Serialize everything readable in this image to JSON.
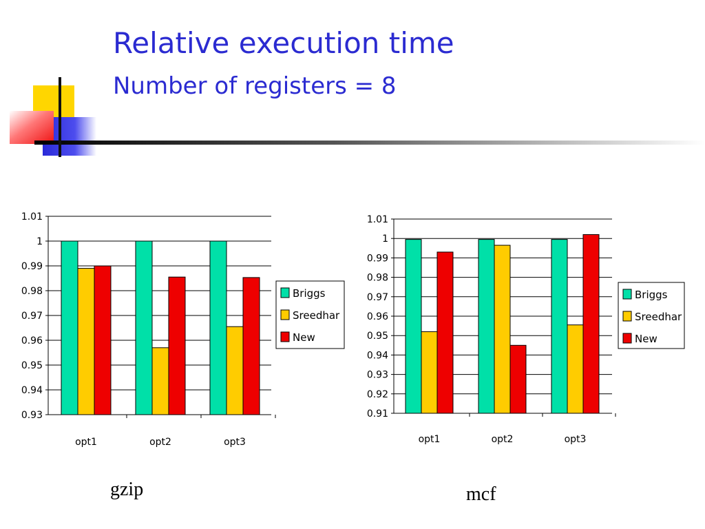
{
  "slide": {
    "title": "Relative execution time",
    "subtitle": "Number of registers = 8",
    "captions": [
      "gzip",
      "mcf"
    ]
  },
  "colors": {
    "title": "#2b2bd1",
    "briggs": "#00e0a8",
    "sreedhar": "#ffcc00",
    "new": "#ee0000"
  },
  "chart_data": [
    {
      "type": "bar",
      "title": "",
      "xlabel": "",
      "ylabel": "",
      "categories": [
        "opt1",
        "opt2",
        "opt3"
      ],
      "series": [
        {
          "name": "Briggs",
          "values": [
            1.0,
            1.0,
            1.0
          ]
        },
        {
          "name": "Sreedhar",
          "values": [
            0.989,
            0.957,
            0.9655
          ]
        },
        {
          "name": "New",
          "values": [
            0.99,
            0.9855,
            0.9853
          ]
        }
      ],
      "ylim": [
        0.93,
        1.01
      ],
      "yticks": [
        "1.01",
        "1",
        "0.99",
        "0.98",
        "0.97",
        "0.96",
        "0.95",
        "0.94",
        "0.93"
      ],
      "grid": true,
      "legend": "right"
    },
    {
      "type": "bar",
      "title": "",
      "xlabel": "",
      "ylabel": "",
      "categories": [
        "opt1",
        "opt2",
        "opt3"
      ],
      "series": [
        {
          "name": "Briggs",
          "values": [
            0.9995,
            0.9995,
            0.9995
          ]
        },
        {
          "name": "Sreedhar",
          "values": [
            0.952,
            0.9965,
            0.9555
          ]
        },
        {
          "name": "New",
          "values": [
            0.993,
            0.945,
            1.002
          ]
        }
      ],
      "ylim": [
        0.91,
        1.01
      ],
      "yticks": [
        "1.01",
        "1",
        "0.99",
        "0.98",
        "0.97",
        "0.96",
        "0.95",
        "0.94",
        "0.93",
        "0.92",
        "0.91"
      ],
      "grid": true,
      "legend": "right"
    }
  ]
}
